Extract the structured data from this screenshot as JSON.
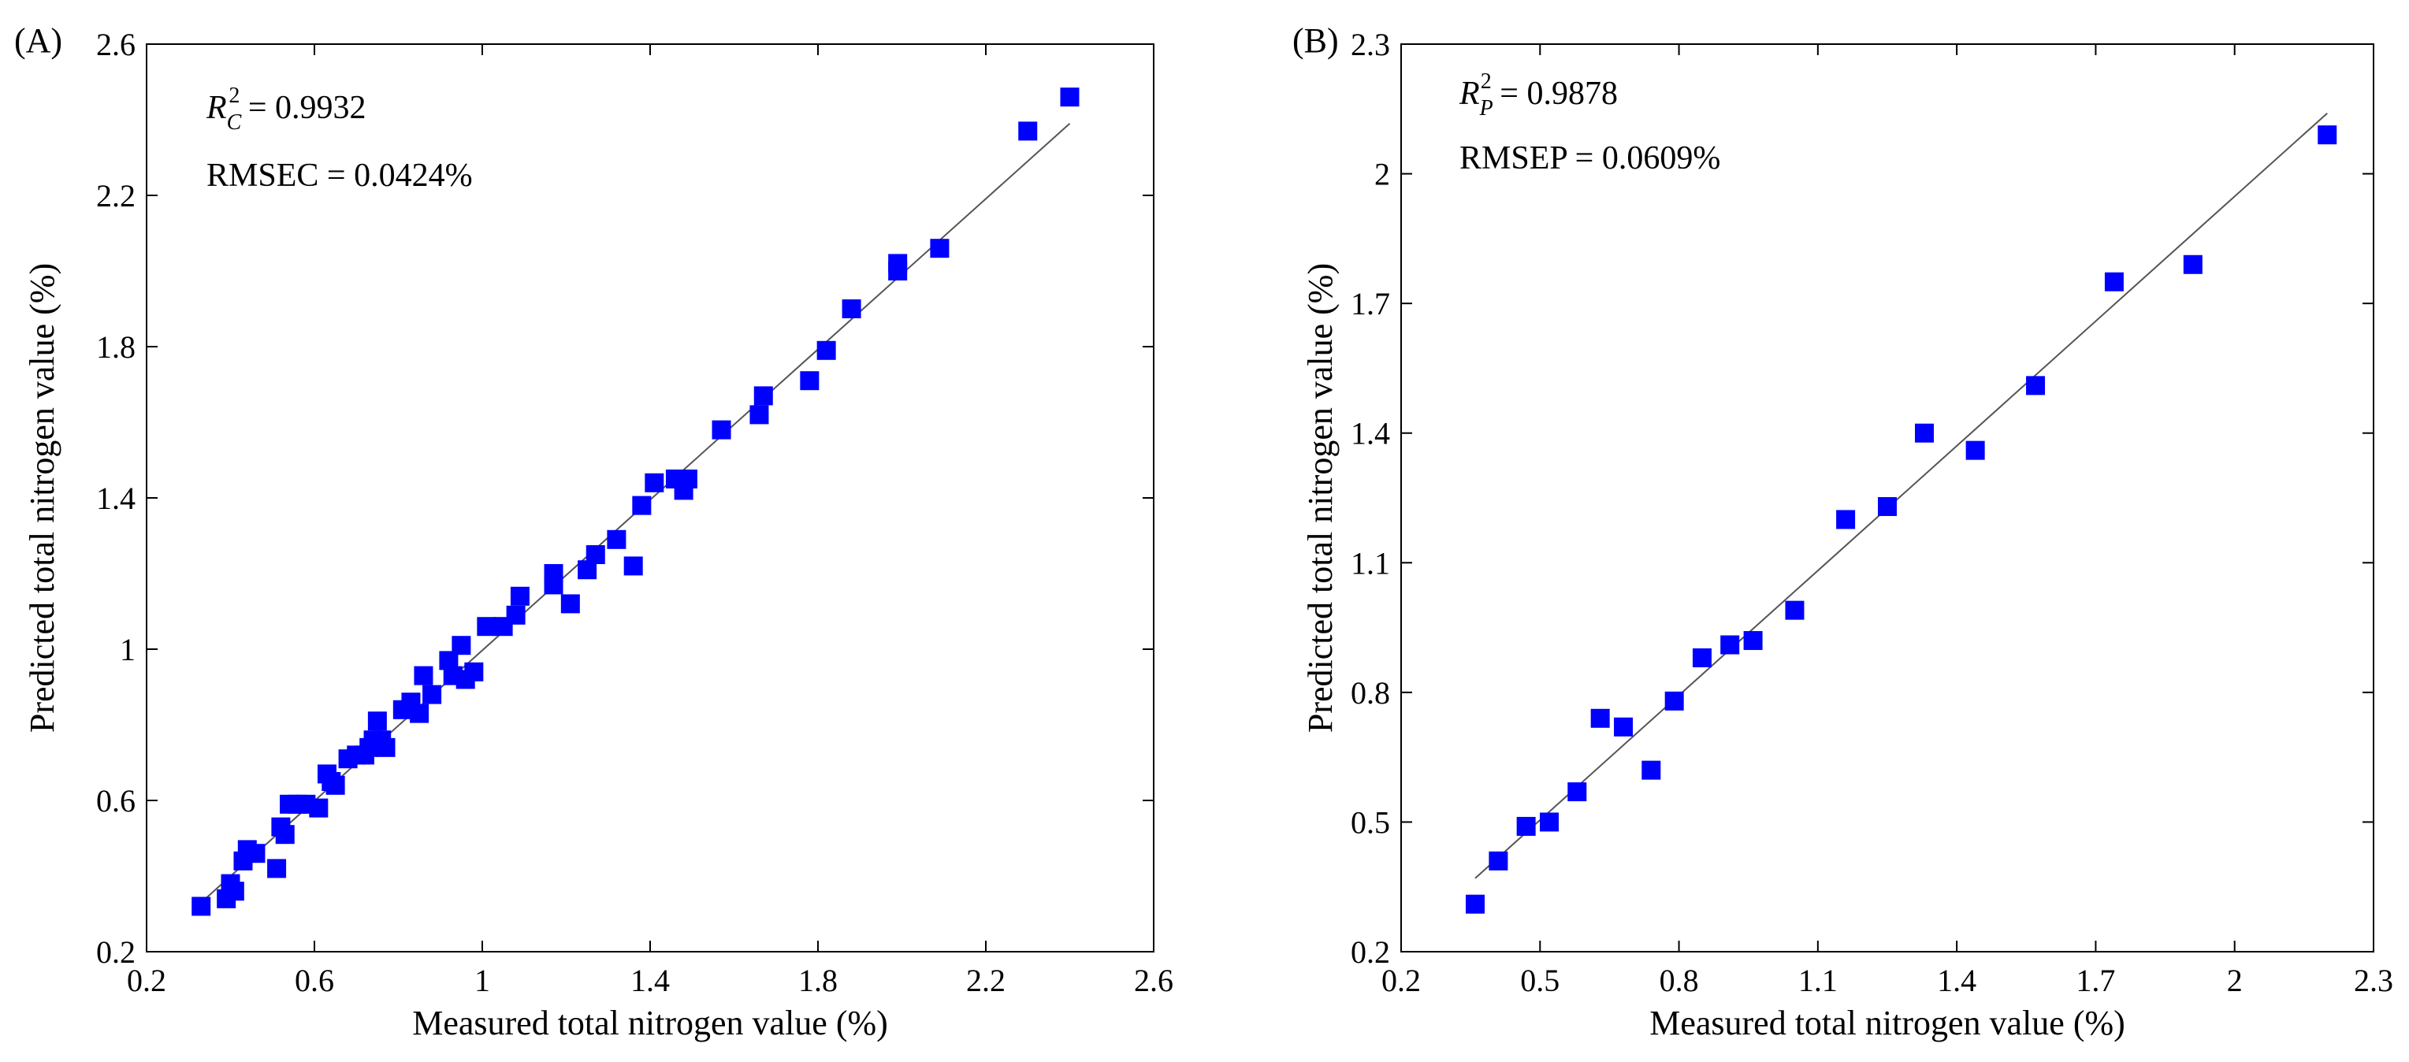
{
  "chart_data": [
    {
      "type": "scatter",
      "panel_label": "(A)",
      "xlabel": "Measured total nitrogen value (%)",
      "ylabel": "Predicted total nitrogen value (%)",
      "xlim": [
        0.2,
        2.6
      ],
      "ylim": [
        0.2,
        2.6
      ],
      "xticks": [
        0.2,
        0.6,
        1.0,
        1.4,
        1.8,
        2.2,
        2.6
      ],
      "yticks": [
        0.2,
        0.6,
        1.0,
        1.4,
        1.8,
        2.2,
        2.6
      ],
      "xtick_labels": [
        "0.2",
        "0.6",
        "1",
        "1.4",
        "1.8",
        "2.2",
        "2.6"
      ],
      "ytick_labels": [
        "0.2",
        "0.6",
        "1",
        "1.4",
        "1.8",
        "2.2",
        "2.6"
      ],
      "stat_symbol": "R",
      "stat_sub": "C",
      "stat_sup": "2",
      "stat_value": " = 0.9932",
      "error_text": "RMSEC = 0.0424%",
      "fit_line": {
        "x": [
          0.33,
          2.4
        ],
        "y": [
          0.33,
          2.39
        ]
      },
      "marker_color": "#0000ff",
      "line_color": "#555555",
      "grid": false,
      "points": [
        [
          0.33,
          0.32
        ],
        [
          0.39,
          0.34
        ],
        [
          0.4,
          0.38
        ],
        [
          0.41,
          0.36
        ],
        [
          0.43,
          0.44
        ],
        [
          0.44,
          0.47
        ],
        [
          0.46,
          0.46
        ],
        [
          0.51,
          0.42
        ],
        [
          0.52,
          0.53
        ],
        [
          0.53,
          0.51
        ],
        [
          0.54,
          0.59
        ],
        [
          0.56,
          0.59
        ],
        [
          0.58,
          0.59
        ],
        [
          0.61,
          0.58
        ],
        [
          0.63,
          0.67
        ],
        [
          0.64,
          0.65
        ],
        [
          0.65,
          0.64
        ],
        [
          0.68,
          0.71
        ],
        [
          0.7,
          0.72
        ],
        [
          0.72,
          0.72
        ],
        [
          0.73,
          0.74
        ],
        [
          0.74,
          0.76
        ],
        [
          0.75,
          0.81
        ],
        [
          0.76,
          0.76
        ],
        [
          0.77,
          0.74
        ],
        [
          0.81,
          0.84
        ],
        [
          0.83,
          0.86
        ],
        [
          0.85,
          0.83
        ],
        [
          0.86,
          0.93
        ],
        [
          0.88,
          0.88
        ],
        [
          0.92,
          0.97
        ],
        [
          0.93,
          0.93
        ],
        [
          0.95,
          1.01
        ],
        [
          0.96,
          0.92
        ],
        [
          0.98,
          0.94
        ],
        [
          1.01,
          1.06
        ],
        [
          1.05,
          1.06
        ],
        [
          1.08,
          1.09
        ],
        [
          1.09,
          1.14
        ],
        [
          1.17,
          1.2
        ],
        [
          1.17,
          1.17
        ],
        [
          1.21,
          1.12
        ],
        [
          1.25,
          1.21
        ],
        [
          1.27,
          1.25
        ],
        [
          1.32,
          1.29
        ],
        [
          1.36,
          1.22
        ],
        [
          1.38,
          1.38
        ],
        [
          1.41,
          1.44
        ],
        [
          1.46,
          1.45
        ],
        [
          1.48,
          1.42
        ],
        [
          1.49,
          1.45
        ],
        [
          1.57,
          1.58
        ],
        [
          1.66,
          1.62
        ],
        [
          1.67,
          1.67
        ],
        [
          1.78,
          1.71
        ],
        [
          1.82,
          1.79
        ],
        [
          1.88,
          1.9
        ],
        [
          1.99,
          2.0
        ],
        [
          1.99,
          2.02
        ],
        [
          2.09,
          2.06
        ],
        [
          2.3,
          2.37
        ],
        [
          2.4,
          2.46
        ]
      ]
    },
    {
      "type": "scatter",
      "panel_label": "(B)",
      "xlabel": "Measured total nitrogen value (%)",
      "ylabel": "Predicted total nitrogen value (%)",
      "xlim": [
        0.2,
        2.3
      ],
      "ylim": [
        0.2,
        2.3
      ],
      "xticks": [
        0.2,
        0.5,
        0.8,
        1.1,
        1.4,
        1.7,
        2.0,
        2.3
      ],
      "yticks": [
        0.2,
        0.5,
        0.8,
        1.1,
        1.4,
        1.7,
        2.0,
        2.3
      ],
      "xtick_labels": [
        "0.2",
        "0.5",
        "0.8",
        "1.1",
        "1.4",
        "1.7",
        "2",
        "2.3"
      ],
      "ytick_labels": [
        "0.2",
        "0.5",
        "0.8",
        "1.1",
        "1.4",
        "1.7",
        "2",
        "2.3"
      ],
      "stat_symbol": "R",
      "stat_sub": "P",
      "stat_sup": "2",
      "stat_value": " = 0.9878",
      "error_text": "RMSEP = 0.0609%",
      "fit_line": {
        "x": [
          0.36,
          2.2
        ],
        "y": [
          0.37,
          2.14
        ]
      },
      "marker_color": "#0000ff",
      "line_color": "#555555",
      "grid": false,
      "points": [
        [
          0.36,
          0.31
        ],
        [
          0.41,
          0.41
        ],
        [
          0.47,
          0.49
        ],
        [
          0.52,
          0.5
        ],
        [
          0.58,
          0.57
        ],
        [
          0.63,
          0.74
        ],
        [
          0.68,
          0.72
        ],
        [
          0.74,
          0.62
        ],
        [
          0.79,
          0.78
        ],
        [
          0.85,
          0.88
        ],
        [
          0.91,
          0.91
        ],
        [
          0.96,
          0.92
        ],
        [
          1.05,
          0.99
        ],
        [
          1.16,
          1.2
        ],
        [
          1.25,
          1.23
        ],
        [
          1.33,
          1.4
        ],
        [
          1.44,
          1.36
        ],
        [
          1.57,
          1.51
        ],
        [
          1.74,
          1.75
        ],
        [
          1.91,
          1.79
        ],
        [
          2.2,
          2.09
        ]
      ]
    }
  ]
}
